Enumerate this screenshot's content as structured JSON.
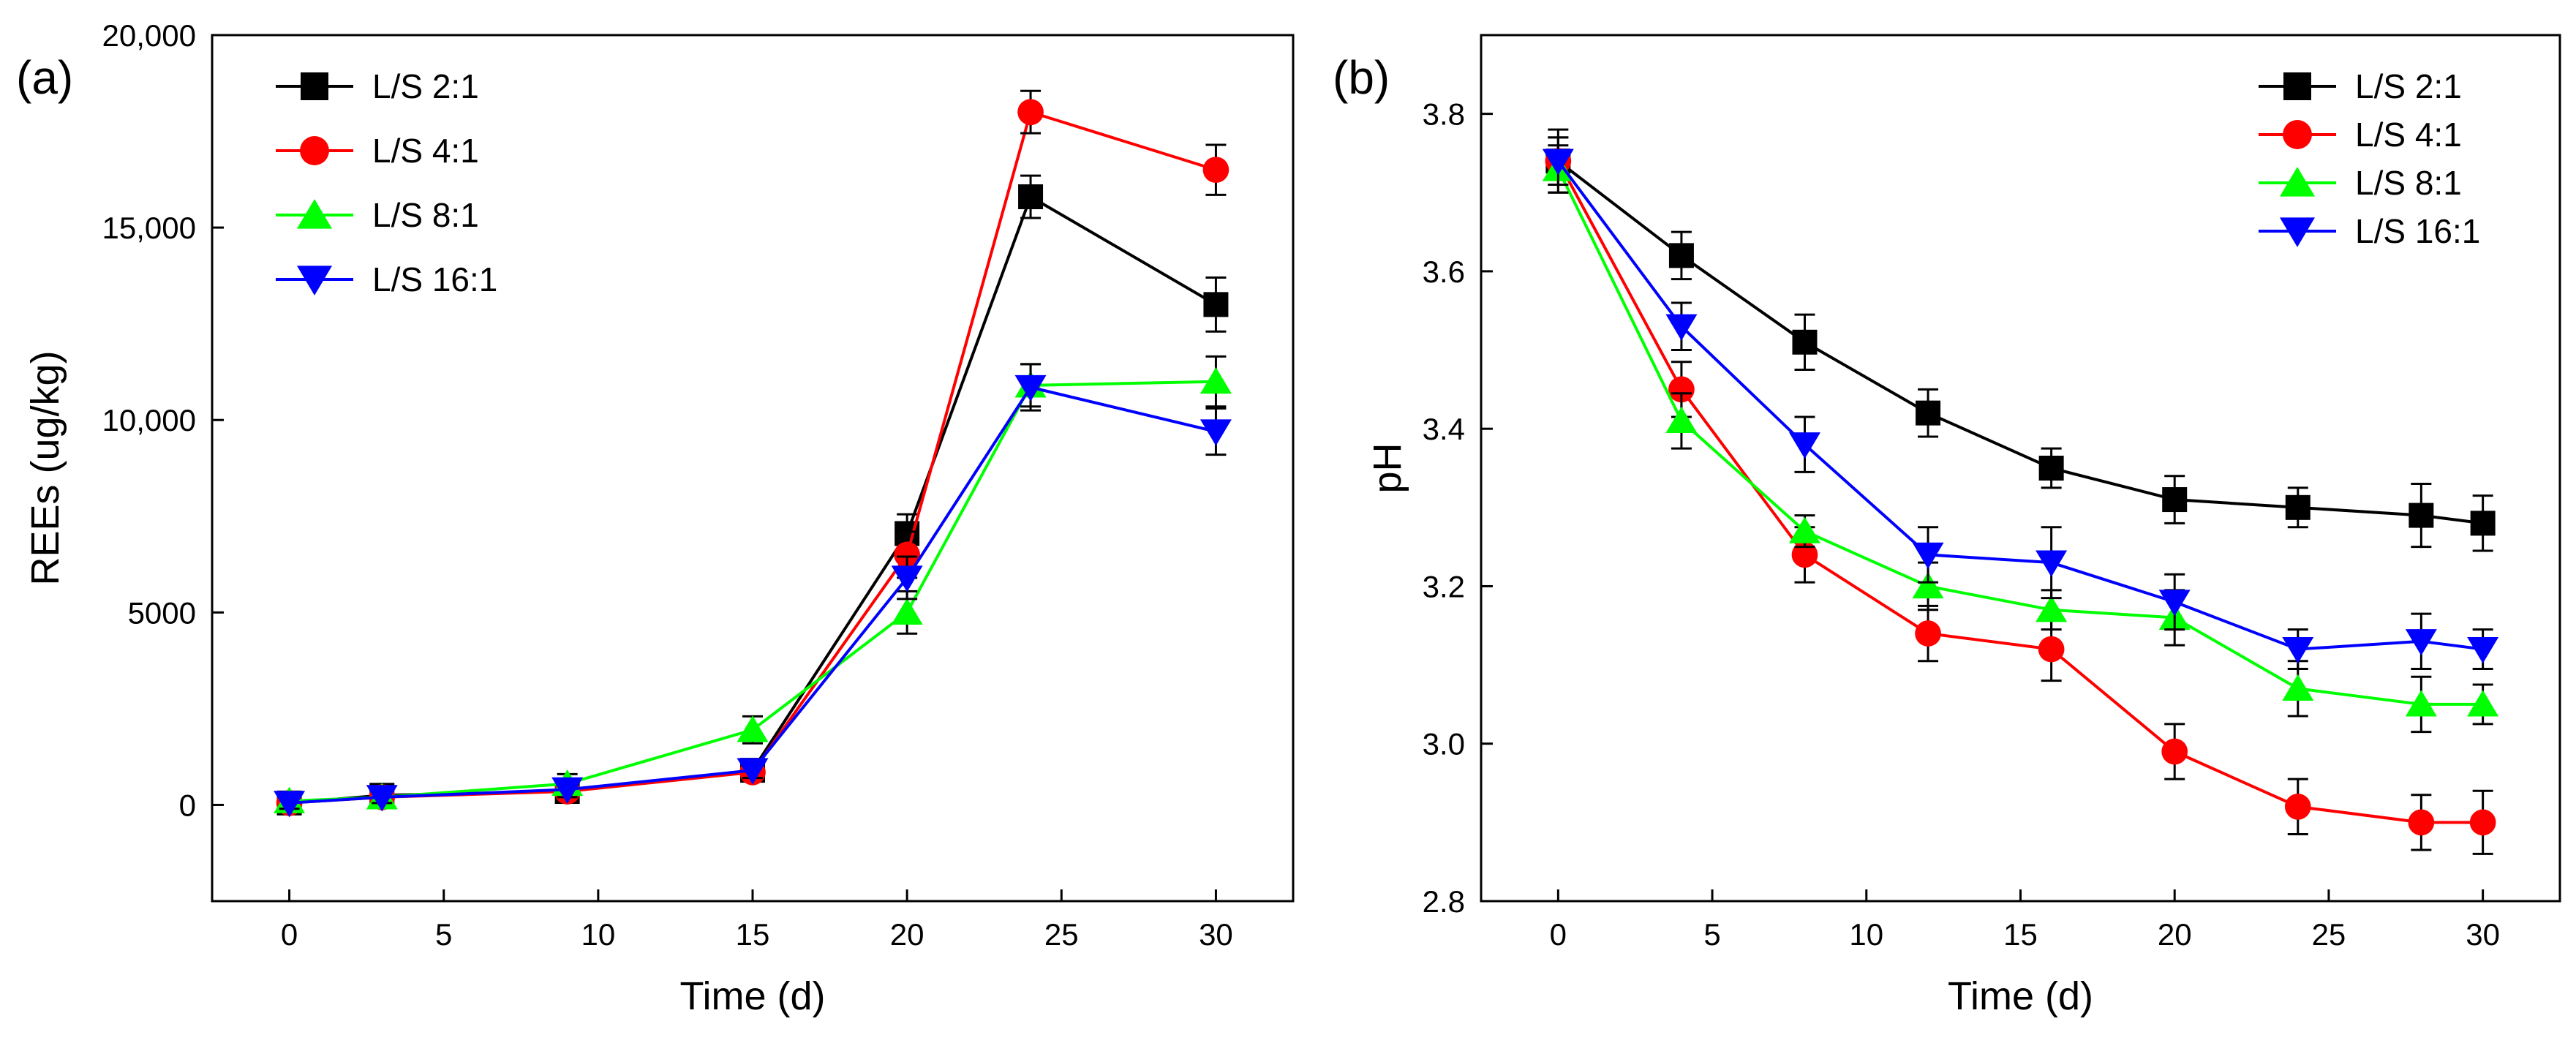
{
  "chart_data": [
    {
      "type": "line",
      "panel_label": "(a)",
      "title": "",
      "xlabel": "Time (d)",
      "ylabel": "REEs (ug/kg)",
      "xlim": [
        -2.5,
        32.5
      ],
      "ylim": [
        -2500,
        20000
      ],
      "xticks": [
        0,
        5,
        10,
        15,
        20,
        25,
        30
      ],
      "xtick_labels": [
        "0",
        "5",
        "10",
        "15",
        "20",
        "25",
        "30"
      ],
      "yticks": [
        0,
        5000,
        10000,
        15000,
        20000
      ],
      "ytick_labels": [
        "0",
        "5000",
        "10,000",
        "15,000",
        "20,000"
      ],
      "grid": false,
      "legend_position": "top-left",
      "series": [
        {
          "name": "L/S 2:1",
          "color": "#000000",
          "marker": "square",
          "x": [
            0,
            3,
            9,
            15,
            20,
            24,
            30
          ],
          "values": [
            50,
            250,
            350,
            900,
            7050,
            15800,
            13000
          ],
          "errors": [
            150,
            150,
            200,
            250,
            500,
            550,
            700
          ]
        },
        {
          "name": "L/S 4:1",
          "color": "#ff0000",
          "marker": "circle",
          "x": [
            0,
            3,
            9,
            15,
            20,
            24,
            30
          ],
          "values": [
            50,
            200,
            350,
            850,
            6500,
            18000,
            16500
          ],
          "errors": [
            150,
            150,
            200,
            200,
            600,
            550,
            650
          ]
        },
        {
          "name": "L/S 8:1",
          "color": "#00ff00",
          "marker": "triangle-up",
          "x": [
            0,
            3,
            9,
            15,
            20,
            24,
            30
          ],
          "values": [
            100,
            200,
            550,
            1950,
            5000,
            10900,
            11000
          ],
          "errors": [
            150,
            150,
            250,
            350,
            550,
            550,
            650
          ]
        },
        {
          "name": "L/S 16:1",
          "color": "#0000ff",
          "marker": "triangle-down",
          "x": [
            0,
            3,
            9,
            15,
            20,
            24,
            30
          ],
          "values": [
            50,
            200,
            400,
            900,
            5900,
            10850,
            9700
          ],
          "errors": [
            150,
            150,
            200,
            200,
            550,
            600,
            600
          ]
        }
      ]
    },
    {
      "type": "line",
      "panel_label": "(b)",
      "title": "",
      "xlabel": "Time (d)",
      "ylabel": "pH",
      "xlim": [
        -2.5,
        32.5
      ],
      "ylim": [
        2.8,
        3.9
      ],
      "xticks": [
        0,
        5,
        10,
        15,
        20,
        25,
        30
      ],
      "xtick_labels": [
        "0",
        "5",
        "10",
        "15",
        "20",
        "25",
        "30"
      ],
      "yticks": [
        2.8,
        3.0,
        3.2,
        3.4,
        3.6,
        3.8
      ],
      "ytick_labels": [
        "2.8",
        "3.0",
        "3.2",
        "3.4",
        "3.6",
        "3.8"
      ],
      "grid": false,
      "legend_position": "top-right",
      "series": [
        {
          "name": "L/S 2:1",
          "color": "#000000",
          "marker": "square",
          "x": [
            0,
            4,
            8,
            12,
            16,
            20,
            24,
            28,
            30
          ],
          "values": [
            3.74,
            3.62,
            3.51,
            3.42,
            3.35,
            3.31,
            3.3,
            3.29,
            3.28
          ],
          "errors": [
            0.04,
            0.03,
            0.035,
            0.03,
            0.025,
            0.03,
            0.025,
            0.04,
            0.035
          ]
        },
        {
          "name": "L/S 4:1",
          "color": "#ff0000",
          "marker": "circle",
          "x": [
            0,
            4,
            8,
            12,
            16,
            20,
            24,
            28,
            30
          ],
          "values": [
            3.74,
            3.45,
            3.24,
            3.14,
            3.12,
            2.99,
            2.92,
            2.9,
            2.9
          ],
          "errors": [
            0.03,
            0.035,
            0.035,
            0.035,
            0.04,
            0.035,
            0.035,
            0.035,
            0.04
          ]
        },
        {
          "name": "L/S 8:1",
          "color": "#00ff00",
          "marker": "triangle-up",
          "x": [
            0,
            4,
            8,
            12,
            16,
            20,
            24,
            28,
            30
          ],
          "values": [
            3.73,
            3.41,
            3.27,
            3.2,
            3.17,
            3.16,
            3.07,
            3.05,
            3.05
          ],
          "errors": [
            0.03,
            0.035,
            0.02,
            0.03,
            0.025,
            0.035,
            0.035,
            0.035,
            0.025
          ]
        },
        {
          "name": "L/S 16:1",
          "color": "#0000ff",
          "marker": "triangle-down",
          "x": [
            0,
            4,
            8,
            12,
            16,
            20,
            24,
            28,
            30
          ],
          "values": [
            3.74,
            3.53,
            3.38,
            3.24,
            3.23,
            3.18,
            3.12,
            3.13,
            3.12
          ],
          "errors": [
            0.03,
            0.03,
            0.035,
            0.035,
            0.045,
            0.035,
            0.025,
            0.035,
            0.025
          ]
        }
      ]
    }
  ]
}
